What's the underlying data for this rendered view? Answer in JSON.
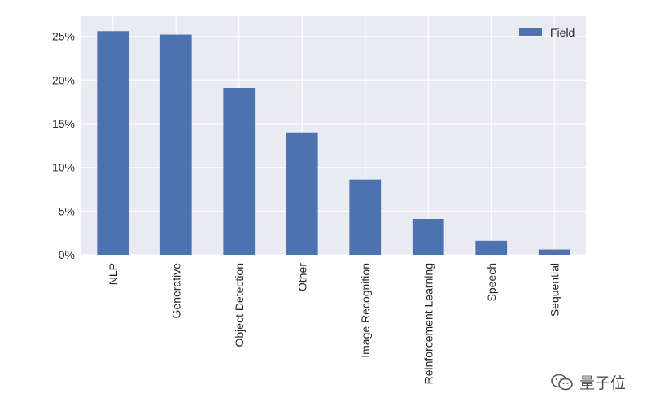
{
  "chart_data": {
    "type": "bar",
    "categories": [
      "NLP",
      "Generative",
      "Object Detection",
      "Other",
      "Image Recognition",
      "Reinforcement Learning",
      "Speech",
      "Sequential"
    ],
    "series": [
      {
        "name": "Field",
        "values": [
          25.6,
          25.2,
          19.1,
          14.0,
          8.6,
          4.1,
          1.6,
          0.6
        ],
        "color": "#4c72b0"
      }
    ],
    "ytick_labels": [
      "0%",
      "5%",
      "10%",
      "15%",
      "20%",
      "25%"
    ],
    "yticks": [
      0,
      5,
      10,
      15,
      20,
      25
    ],
    "ylim": [
      0,
      27.3
    ],
    "grid": true,
    "legend_position": "top-right",
    "background": "#eaeaf2"
  },
  "watermark": {
    "text": "量子位"
  }
}
